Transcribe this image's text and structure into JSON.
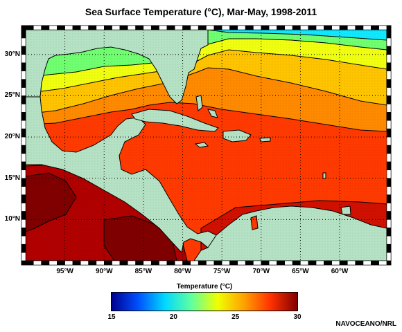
{
  "title": "Sea Surface Temperature (°C), Mar-May, 1998-2011",
  "credit": "NAVOCEANO/NRL",
  "map": {
    "lon_range": [
      -100,
      -54
    ],
    "lat_range": [
      5,
      33
    ],
    "lon_ticks": [
      {
        "value": -95,
        "label": "95°W"
      },
      {
        "value": -90,
        "label": "90°W"
      },
      {
        "value": -85,
        "label": "85°W"
      },
      {
        "value": -80,
        "label": "80°W"
      },
      {
        "value": -75,
        "label": "75°W"
      },
      {
        "value": -70,
        "label": "70°W"
      },
      {
        "value": -65,
        "label": "65°W"
      },
      {
        "value": -60,
        "label": "60°W"
      }
    ],
    "lat_ticks": [
      {
        "value": 10,
        "label": "10°N"
      },
      {
        "value": 15,
        "label": "15°N"
      },
      {
        "value": 20,
        "label": "20°N"
      },
      {
        "value": 25,
        "label": "25°N"
      },
      {
        "value": 30,
        "label": "30°N"
      }
    ],
    "land_color": "#b5e2c4",
    "grid": "dotted"
  },
  "colorbar": {
    "label": "Temperature (°C)",
    "min": 15,
    "max": 30,
    "ticks": [
      {
        "value": 15,
        "label": "15"
      },
      {
        "value": 20,
        "label": "20"
      },
      {
        "value": 25,
        "label": "25"
      },
      {
        "value": 30,
        "label": "30"
      }
    ],
    "colors": [
      "#00008f",
      "#0050ff",
      "#00d8ff",
      "#60ffa0",
      "#f0ff00",
      "#ffa000",
      "#ff3000",
      "#800000"
    ]
  }
}
